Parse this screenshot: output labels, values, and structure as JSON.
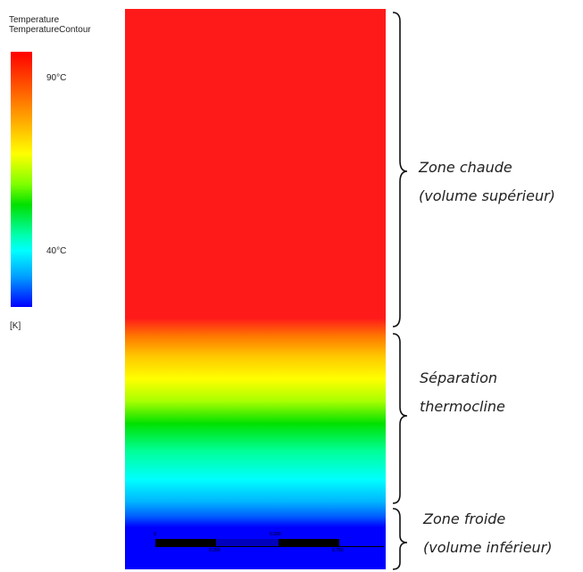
{
  "legend": {
    "title_line1": "Temperature",
    "title_line2": "TemperatureContour",
    "tick_high": "90°C",
    "tick_low": "40°C",
    "unit": "[K]"
  },
  "scale": {
    "lbl_0": "0",
    "lbl_1": "0.250",
    "lbl_2": "0.500",
    "lbl_3": "0.750"
  },
  "zones": {
    "hot_line1": "Zone chaude",
    "hot_line2": "(volume supérieur)",
    "sep_line1": "Séparation",
    "sep_line2": "thermocline",
    "cold_line1": "Zone froide",
    "cold_line2": "(volume inférieur)"
  }
}
